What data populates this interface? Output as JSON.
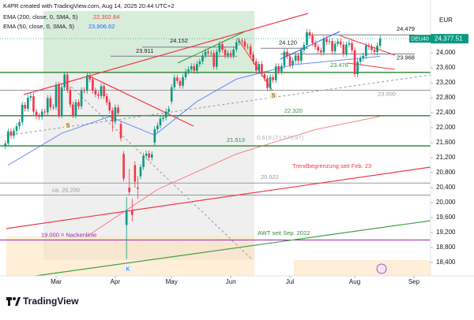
{
  "chart_data": {
    "type": "candlestick",
    "title": "K4PR created with TradingView.com, Aug 14, 2025 20:44 UTC+2",
    "currency": "EUR",
    "symbol": "DEU40",
    "last_price_label": "24,377.51",
    "up_color": "#089981",
    "down_color": "#f23645",
    "xlim": [
      -1.9,
      150.9
    ],
    "ylim": [
      18042,
      25116
    ],
    "xticks": [
      {
        "value": 18,
        "label": "Mar"
      },
      {
        "value": 39,
        "label": "Apr"
      },
      {
        "value": 59,
        "label": "May"
      },
      {
        "value": 80,
        "label": "Jun"
      },
      {
        "value": 101,
        "label": "Jul"
      },
      {
        "value": 124,
        "label": "Aug"
      },
      {
        "value": 145,
        "label": "Sep"
      }
    ],
    "yticks": [
      {
        "value": 18400,
        "label": "18,400"
      },
      {
        "value": 18800,
        "label": "18,800"
      },
      {
        "value": 19200,
        "label": "19,200"
      },
      {
        "value": 19600,
        "label": "19,600"
      },
      {
        "value": 20000,
        "label": "20,000"
      },
      {
        "value": 20400,
        "label": "20,400"
      },
      {
        "value": 20800,
        "label": "20,800"
      },
      {
        "value": 21200,
        "label": "21,200"
      },
      {
        "value": 21600,
        "label": "21,600"
      },
      {
        "value": 22000,
        "label": "22,000"
      },
      {
        "value": 22400,
        "label": "22,400"
      },
      {
        "value": 22800,
        "label": "22,800"
      },
      {
        "value": 23200,
        "label": "23,200"
      },
      {
        "value": 23600,
        "label": "23,600"
      },
      {
        "value": 24000,
        "label": "24,000"
      },
      {
        "value": 24400,
        "label": "24,400"
      }
    ],
    "open": [
      21500,
      21580,
      21900,
      21790,
      21920,
      22040,
      22150,
      22610,
      22510,
      22800,
      22840,
      22430,
      22310,
      22290,
      22430,
      22410,
      22790,
      22550,
      22550,
      23150,
      22330,
      23080,
      23420,
      23010,
      22620,
      22330,
      22680,
      22570,
      23000,
      22990,
      23380,
      23290,
      22990,
      22890,
      22850,
      23110,
      22840,
      22680,
      22460,
      22160,
      22540,
      22100,
      21300,
      19400,
      20400,
      19800,
      21000,
      20400,
      20700,
      20950,
      21250,
      21310,
      21200,
      21600,
      21960,
      22060,
      22240,
      22270,
      22430,
      22700,
      23080,
      23340,
      23250,
      23120,
      23350,
      23500,
      23560,
      23640,
      23520,
      23700,
      23770,
      23930,
      24030,
      23990,
      23990,
      23630,
      24030,
      24230,
      24080,
      23930,
      23990,
      23930,
      24090,
      24280,
      24320,
      24300,
      24170,
      24160,
      23950,
      23770,
      23520,
      23700,
      23430,
      23320,
      23060,
      23350,
      23270,
      23640,
      23500,
      23650,
      24030,
      23910,
      23670,
      23790,
      23930,
      23790,
      24070,
      24210,
      24550,
      24460,
      24260,
      24160,
      24060,
      24010,
      24370,
      24290,
      24310,
      24040,
      24240,
      24300,
      24220,
      23970,
      24220,
      24260,
      24070,
      23430,
      23760,
      23850,
      23920,
      24190,
      24160,
      24080,
      24020,
      24190
    ],
    "high": [
      21660,
      21980,
      21980,
      22000,
      22120,
      22230,
      22690,
      22690,
      22880,
      22920,
      22920,
      22510,
      22390,
      22510,
      22510,
      22870,
      22870,
      22630,
      23230,
      23230,
      23160,
      23476,
      23500,
      23090,
      22700,
      22760,
      22760,
      23080,
      23080,
      23460,
      23460,
      23370,
      23070,
      22970,
      23190,
      23190,
      22920,
      22760,
      22540,
      22620,
      22620,
      22180,
      21380,
      20150,
      20900,
      20100,
      21100,
      20700,
      21030,
      21330,
      21390,
      21390,
      21370,
      22040,
      22140,
      22320,
      22350,
      22510,
      22580,
      23160,
      23420,
      23420,
      23330,
      23430,
      23580,
      23640,
      23720,
      23720,
      23780,
      23850,
      24010,
      24110,
      24110,
      24070,
      24070,
      24110,
      24310,
      24310,
      24160,
      24070,
      24070,
      24170,
      24360,
      24400,
      24400,
      24380,
      24250,
      24240,
      24030,
      23850,
      23780,
      23780,
      23510,
      23400,
      23430,
      23430,
      23720,
      23720,
      23730,
      24110,
      24110,
      23990,
      23870,
      24010,
      24010,
      24150,
      24290,
      24639,
      24630,
      24540,
      24340,
      24240,
      24140,
      24450,
      24450,
      24390,
      24390,
      24320,
      24380,
      24380,
      24300,
      24300,
      24340,
      24340,
      24150,
      23840,
      23930,
      24000,
      24270,
      24270,
      24240,
      24160,
      24270,
      24457
    ],
    "low": [
      21420,
      21500,
      21710,
      21710,
      21840,
      21960,
      22070,
      22430,
      22430,
      22720,
      22350,
      22230,
      22210,
      22210,
      22330,
      22330,
      22470,
      22470,
      22470,
      22250,
      22250,
      23000,
      22930,
      22540,
      22250,
      22250,
      22490,
      22490,
      22910,
      22910,
      23210,
      22910,
      22810,
      22770,
      22770,
      22760,
      22600,
      22380,
      21900,
      22080,
      22310,
      21640,
      20560,
      18490,
      20200,
      19500,
      20400,
      20100,
      20620,
      20870,
      21170,
      21120,
      21120,
      21520,
      21880,
      21980,
      22160,
      22190,
      22350,
      22620,
      23000,
      23170,
      23040,
      23040,
      23270,
      23420,
      23480,
      23440,
      23440,
      23620,
      23690,
      23850,
      23910,
      23910,
      23550,
      23550,
      23950,
      24000,
      23850,
      23850,
      23850,
      23850,
      24010,
      24200,
      24220,
      24090,
      24080,
      23870,
      23690,
      23440,
      23440,
      23350,
      23240,
      22980,
      22980,
      23190,
      23190,
      23420,
      23420,
      23570,
      23830,
      23590,
      23590,
      23710,
      23710,
      23710,
      23990,
      24130,
      24380,
      24180,
      24080,
      23980,
      23930,
      23930,
      24210,
      24210,
      23960,
      23960,
      24160,
      24140,
      23890,
      23890,
      24140,
      23990,
      23350,
      23350,
      23680,
      23770,
      23840,
      24080,
      24000,
      23940,
      23940,
      24110
    ],
    "close": [
      21580,
      21900,
      21790,
      21920,
      22040,
      22150,
      22610,
      22510,
      22800,
      22840,
      22430,
      22310,
      22290,
      22430,
      22410,
      22790,
      22550,
      22550,
      23150,
      22330,
      23080,
      23420,
      23010,
      22620,
      22330,
      22680,
      22570,
      23000,
      22990,
      23380,
      23290,
      22990,
      22890,
      22850,
      23110,
      22840,
      22680,
      22460,
      22160,
      22540,
      22390,
      21720,
      20640,
      19790,
      20280,
      19670,
      20560,
      20370,
      20950,
      21250,
      21310,
      21200,
      21290,
      21960,
      22060,
      22240,
      22270,
      22430,
      22500,
      23080,
      23340,
      23250,
      23120,
      23350,
      23500,
      23560,
      23640,
      23520,
      23700,
      23770,
      23930,
      24030,
      23990,
      23990,
      23630,
      24030,
      24230,
      24080,
      23930,
      23990,
      23930,
      24090,
      24280,
      24320,
      24300,
      24170,
      24160,
      23950,
      23770,
      23520,
      23700,
      23430,
      23320,
      23060,
      23350,
      23270,
      23640,
      23500,
      23650,
      24030,
      23910,
      23670,
      23790,
      23930,
      23790,
      24070,
      24210,
      24550,
      24460,
      24260,
      24160,
      24060,
      24010,
      24370,
      24290,
      24310,
      24040,
      24240,
      24300,
      24220,
      23970,
      24220,
      24260,
      24070,
      23430,
      23760,
      23850,
      23920,
      24190,
      24160,
      24080,
      24020,
      24190,
      24377.51
    ],
    "series": [
      {
        "name": "EMA (200, close, 0, SMA, 5)",
        "value_text": "22,302.84",
        "color": "#f7525f",
        "x": [
          29,
          54,
          82,
          110,
          133
        ],
        "values": [
          19100,
          20350,
          21300,
          21950,
          22302.84
        ]
      },
      {
        "name": "EMA (50, close, 0, SMA, 5)",
        "value_text": "23,906.62",
        "color": "#2962ff",
        "x": [
          1,
          20,
          37,
          53,
          68,
          82,
          102,
          133
        ],
        "values": [
          21000,
          21850,
          22300,
          21800,
          22700,
          23300,
          23680,
          23906.62
        ]
      }
    ],
    "levels": [
      {
        "value": 24479,
        "label": "24.479",
        "color": "#787b86"
      },
      {
        "value": 24152,
        "label": "24.152",
        "color": "#787b86"
      },
      {
        "value": 23911,
        "label": "23.911",
        "color": "#787b86"
      },
      {
        "value": 24120,
        "label": "24.120",
        "color": "#787b86"
      },
      {
        "value": 23968,
        "label": "23.968",
        "color": "#787b86"
      },
      {
        "value": 23476,
        "label": "23.476",
        "color": "#388e3c"
      },
      {
        "value": 23000,
        "label": "23.000",
        "color": "#9598a1"
      },
      {
        "value": 22320,
        "label": "22.320",
        "color": "#388e3c"
      },
      {
        "value": 21513,
        "label": "21.513",
        "color": "#388e3c"
      },
      {
        "value": 20522,
        "label": "20.522",
        "color": "#9598a1"
      },
      {
        "value": 20200,
        "label": "ca. 20.200",
        "color": "#9598a1"
      },
      {
        "value": 19000,
        "label": "19.000 = Nackenlinie",
        "color": "#9c27b0"
      }
    ],
    "annotations": [
      "Trendbegrenzung seit Feb. 23",
      "AWT seit Sep. 2022",
      "S",
      "S",
      "K",
      "0.618 (21,570.97)"
    ],
    "brand": "TradingView"
  }
}
